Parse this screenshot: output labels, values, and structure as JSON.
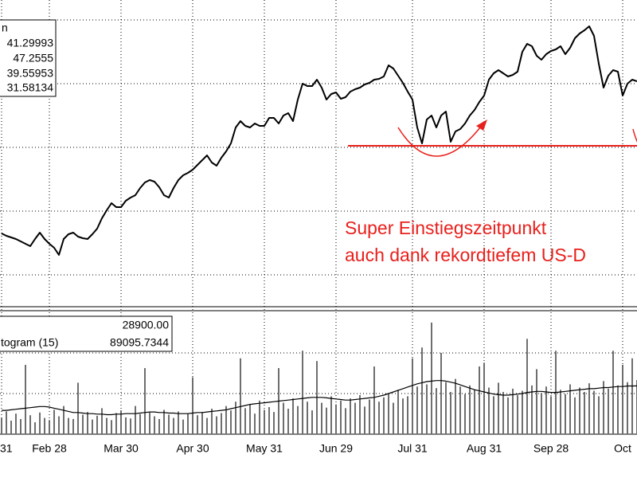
{
  "chart_data": [
    {
      "type": "line",
      "color": "#000000",
      "ylim": [
        29,
        48.25
      ],
      "yticks": [
        31,
        35,
        39,
        43,
        47
      ],
      "grid": true,
      "legend": {
        "title": "n",
        "values": [
          41.29993,
          47.2555,
          39.55953,
          31.58134
        ]
      },
      "reference_line": {
        "value": 39.1,
        "color": "#e8201c"
      },
      "annotations": [
        "Super Einstiegszeitpunkt",
        "auch dank rekordtiefem US-D"
      ],
      "values": [
        33.6,
        33.45,
        33.35,
        33.25,
        33.1,
        32.95,
        32.8,
        33.25,
        33.65,
        33.25,
        32.95,
        32.7,
        32.25,
        33.25,
        33.55,
        33.65,
        33.4,
        33.3,
        33.25,
        33.55,
        33.9,
        34.55,
        35.05,
        35.5,
        35.25,
        35.25,
        35.65,
        35.85,
        36,
        36.45,
        36.8,
        36.95,
        36.85,
        36.5,
        36,
        35.85,
        36.45,
        36.95,
        37.25,
        37.4,
        37.6,
        37.9,
        38.2,
        38.5,
        38.05,
        37.85,
        38.35,
        38.75,
        39.25,
        40.25,
        40.65,
        40.35,
        40.25,
        40.5,
        40.35,
        40.35,
        40.85,
        40.85,
        40.5,
        41,
        41.15,
        40.65,
        42,
        43,
        42.85,
        42.85,
        43.25,
        42.75,
        42,
        42.35,
        42.45,
        42.05,
        42.15,
        42.5,
        42.65,
        42.75,
        42.95,
        43.05,
        43.25,
        43.3,
        43.45,
        44.15,
        43.95,
        43.5,
        43.05,
        42.5,
        42,
        40.25,
        39.25,
        40.75,
        41,
        40.25,
        41,
        41.25,
        39.35,
        40,
        40.15,
        40.5,
        41,
        41.35,
        41.85,
        42.25,
        43.25,
        43.65,
        43.85,
        43.65,
        43.45,
        43.55,
        43.75,
        45,
        45.5,
        45.35,
        44.75,
        44.5,
        44.85,
        45.05,
        45.15,
        45.35,
        44.85,
        45.25,
        45.85,
        46.15,
        46.35,
        46.6,
        46,
        44.25,
        42.75,
        43.5,
        43.85,
        43.75,
        42.25,
        43,
        43.25,
        43.15
      ]
    },
    {
      "type": "bar",
      "ylim": [
        0,
        225000
      ],
      "yticks": [
        75000,
        150000
      ],
      "grid": true,
      "legend_values": [
        "28900.00",
        89095.7344
      ],
      "categories": [
        "31",
        null,
        null,
        null,
        null,
        null,
        null,
        null,
        null,
        null,
        "Feb 28",
        null,
        null,
        null,
        null,
        null,
        null,
        null,
        null,
        null,
        null,
        null,
        null,
        null,
        null,
        "Mar 30",
        null,
        null,
        null,
        null,
        null,
        null,
        null,
        null,
        null,
        null,
        null,
        null,
        null,
        null,
        "Apr 30",
        null,
        null,
        null,
        null,
        null,
        null,
        null,
        null,
        null,
        null,
        null,
        null,
        null,
        null,
        "May 31",
        null,
        null,
        null,
        null,
        null,
        null,
        null,
        null,
        null,
        null,
        null,
        null,
        null,
        null,
        "Jun 29",
        null,
        null,
        null,
        null,
        null,
        null,
        null,
        null,
        null,
        null,
        null,
        null,
        null,
        null,
        null,
        "Jul 31",
        null,
        null,
        null,
        null,
        null,
        null,
        null,
        null,
        null,
        null,
        null,
        null,
        null,
        null,
        "Aug 31",
        null,
        null,
        null,
        null,
        null,
        null,
        null,
        null,
        null,
        null,
        null,
        null,
        null,
        "Sep 28",
        null,
        null,
        null,
        null,
        null,
        null,
        null,
        null,
        null,
        null,
        null,
        null,
        null,
        null,
        "Oct",
        null,
        null,
        null
      ],
      "series": [
        {
          "type": "bar",
          "color": "#6e6e6e",
          "values": [
            30000,
            42000,
            25000,
            38000,
            28000,
            128000,
            35000,
            22000,
            40000,
            30000,
            26000,
            45000,
            33000,
            52000,
            30000,
            28000,
            95000,
            36000,
            41000,
            27000,
            34000,
            48000,
            30000,
            26000,
            39000,
            44000,
            31000,
            29000,
            52000,
            37000,
            122000,
            40000,
            33000,
            28000,
            45000,
            36000,
            30000,
            42000,
            27000,
            38000,
            105000,
            35000,
            41000,
            30000,
            47000,
            33000,
            39000,
            52000,
            44000,
            60000,
            140000,
            48000,
            55000,
            38000,
            62000,
            45000,
            50000,
            41000,
            122000,
            58000,
            47000,
            66000,
            52000,
            154000,
            60000,
            44000,
            135000,
            58000,
            49000,
            70000,
            55000,
            62000,
            48000,
            66000,
            58000,
            72000,
            51000,
            64000,
            125000,
            60000,
            68000,
            75000,
            58000,
            82000,
            66000,
            70000,
            140000,
            88000,
            160000,
            92000,
            206000,
            85000,
            150000,
            96000,
            78000,
            102000,
            88000,
            74000,
            90000,
            82000,
            125000,
            132000,
            86000,
            70000,
            95000,
            78000,
            68000,
            84000,
            72000,
            80000,
            176000,
            90000,
            120000,
            76000,
            88000,
            70000,
            154000,
            82000,
            74000,
            92000,
            68000,
            86000,
            78000,
            94000,
            80000,
            70000,
            98000,
            84000,
            154000,
            90000,
            128000,
            96000,
            140000,
            100000
          ]
        },
        {
          "type": "line",
          "name": "togram (15)",
          "color": "#000000",
          "values": [
            44000,
            44000,
            45000,
            46000,
            47000,
            48000,
            49000,
            50000,
            51000,
            51000,
            50000,
            48000,
            46000,
            44000,
            42000,
            40000,
            40000,
            39000,
            38000,
            38000,
            37000,
            37000,
            36000,
            36000,
            37000,
            37000,
            38000,
            38000,
            38000,
            39000,
            40000,
            41000,
            41000,
            40000,
            40000,
            39000,
            39000,
            38000,
            38000,
            38000,
            39000,
            40000,
            40000,
            41000,
            42000,
            43000,
            44000,
            45000,
            47000,
            49000,
            51000,
            53000,
            55000,
            56000,
            57000,
            58000,
            59000,
            60000,
            61000,
            62000,
            63000,
            64000,
            65000,
            66000,
            67000,
            68000,
            68000,
            68000,
            67000,
            66000,
            65000,
            64000,
            63000,
            63000,
            64000,
            65000,
            66000,
            67000,
            68000,
            70000,
            72000,
            75000,
            78000,
            81000,
            84000,
            87000,
            90000,
            93000,
            95000,
            97000,
            98000,
            99000,
            99000,
            98000,
            96000,
            94000,
            91000,
            88000,
            85000,
            82000,
            80000,
            78000,
            76000,
            74000,
            73000,
            72000,
            72000,
            73000,
            74000,
            75000,
            77000,
            78000,
            79000,
            79000,
            78000,
            77000,
            77000,
            78000,
            79000,
            80000,
            81000,
            82000,
            83000,
            84000,
            84000,
            85000,
            86000,
            86000,
            87000,
            88000,
            88000,
            89000,
            89000,
            89095.7344
          ]
        }
      ]
    }
  ]
}
